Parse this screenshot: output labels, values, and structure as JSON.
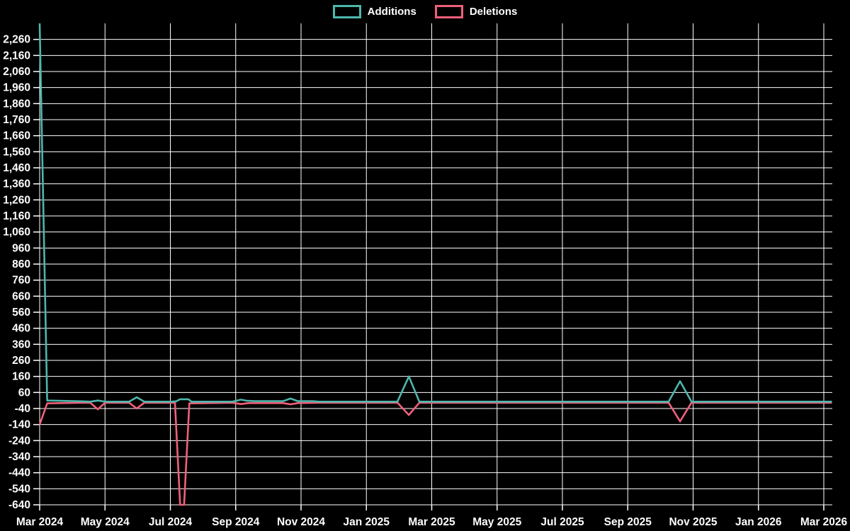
{
  "legend": {
    "items": [
      {
        "label": "Additions",
        "color": "#4db6ac"
      },
      {
        "label": "Deletions",
        "color": "#f0607a"
      }
    ]
  },
  "chart_data": {
    "type": "line",
    "title": "",
    "background_color": "#000000",
    "grid_color": "#ffffff",
    "text_color": "#ffffff",
    "grid": true,
    "legend_position": "top-center",
    "x_axis": {
      "unit": "months since Mar 2024",
      "range_months": [
        0,
        24.25
      ],
      "tick_positions_months": [
        0,
        2,
        4,
        6,
        8,
        10,
        12,
        14,
        16,
        18,
        20,
        22,
        24
      ],
      "tick_labels": [
        "Mar 2024",
        "May 2024",
        "Jul 2024",
        "Sep 2024",
        "Nov 2024",
        "Jan 2025",
        "Mar 2025",
        "May 2025",
        "Jul 2025",
        "Sep 2025",
        "Nov 2025",
        "Jan 2026",
        "Mar 2026"
      ]
    },
    "y_axis": {
      "min": -640,
      "max": 2360,
      "grid_step": 100,
      "labeled_min": -640,
      "labeled_max": 2260,
      "note": "labels every 100 from -640 to 2260; top edge 2360 unlabeled"
    },
    "series": [
      {
        "name": "Additions",
        "color": "#4db6ac",
        "points": [
          [
            0,
            2360
          ],
          [
            0.23,
            10
          ],
          [
            1.3,
            5
          ],
          [
            1.55,
            3
          ],
          [
            1.78,
            10
          ],
          [
            2.0,
            3
          ],
          [
            2.74,
            3
          ],
          [
            2.97,
            30
          ],
          [
            3.2,
            3
          ],
          [
            4.05,
            3
          ],
          [
            4.18,
            5
          ],
          [
            4.3,
            18
          ],
          [
            4.55,
            18
          ],
          [
            4.65,
            3
          ],
          [
            5.9,
            3
          ],
          [
            6.16,
            15
          ],
          [
            6.35,
            8
          ],
          [
            6.6,
            6
          ],
          [
            7.45,
            6
          ],
          [
            7.68,
            22
          ],
          [
            7.9,
            6
          ],
          [
            8.35,
            6
          ],
          [
            8.55,
            3
          ],
          [
            10.95,
            3
          ],
          [
            11.3,
            160
          ],
          [
            11.62,
            3
          ],
          [
            19.25,
            3
          ],
          [
            19.6,
            130
          ],
          [
            19.95,
            3
          ],
          [
            24.25,
            3
          ]
        ]
      },
      {
        "name": "Deletions",
        "color": "#f0607a",
        "points": [
          [
            0,
            -140
          ],
          [
            0.23,
            -8
          ],
          [
            1.3,
            -4
          ],
          [
            1.55,
            -4
          ],
          [
            1.78,
            -45
          ],
          [
            2.0,
            -4
          ],
          [
            2.74,
            -4
          ],
          [
            2.97,
            -40
          ],
          [
            3.2,
            -4
          ],
          [
            4.14,
            -4
          ],
          [
            4.3,
            -640
          ],
          [
            4.42,
            -640
          ],
          [
            4.58,
            -8
          ],
          [
            5.9,
            -4
          ],
          [
            6.16,
            -12
          ],
          [
            6.4,
            -6
          ],
          [
            7.45,
            -6
          ],
          [
            7.68,
            -14
          ],
          [
            7.9,
            -6
          ],
          [
            8.55,
            -4
          ],
          [
            10.95,
            -4
          ],
          [
            11.3,
            -80
          ],
          [
            11.62,
            -4
          ],
          [
            19.25,
            -4
          ],
          [
            19.6,
            -120
          ],
          [
            19.95,
            -4
          ],
          [
            24.25,
            -4
          ]
        ]
      }
    ]
  }
}
